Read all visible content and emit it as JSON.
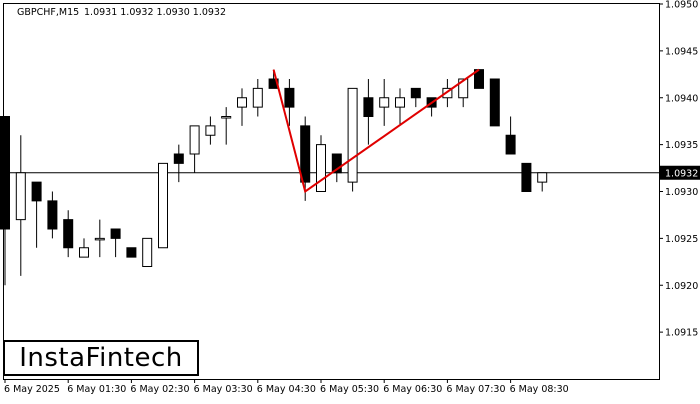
{
  "header": {
    "symbol_label": "GBPCHF,M15",
    "ohlc_label": "1.0931 1.0932 1.0930 1.0932"
  },
  "logo": {
    "text": "InstaFintech"
  },
  "current_price": {
    "label": "1.0932",
    "value": 1.0932
  },
  "colors": {
    "bull": "#ffffff",
    "bear": "#000000",
    "pattern_line": "#e00000",
    "price_line": "#000000"
  },
  "chart_data": {
    "type": "candlestick",
    "symbol": "GBPCHF",
    "timeframe": "M15",
    "ylim": [
      1.091,
      1.095
    ],
    "y_ticks": [
      "1.0915",
      "1.0920",
      "1.0925",
      "1.0930",
      "1.0935",
      "1.0940",
      "1.0945",
      "1.0950"
    ],
    "x_ticks": [
      "6 May 2025",
      "6 May 01:30",
      "6 May 02:30",
      "6 May 03:30",
      "6 May 04:30",
      "6 May 05:30",
      "6 May 06:30",
      "6 May 07:30",
      "6 May 08:30"
    ],
    "candles": [
      {
        "o": 1.0938,
        "h": 1.0938,
        "l": 1.092,
        "c": 1.0926
      },
      {
        "o": 1.0927,
        "h": 1.0936,
        "l": 1.0921,
        "c": 1.0932
      },
      {
        "o": 1.0931,
        "h": 1.0931,
        "l": 1.0924,
        "c": 1.0929
      },
      {
        "o": 1.0929,
        "h": 1.093,
        "l": 1.0925,
        "c": 1.0926
      },
      {
        "o": 1.0927,
        "h": 1.0928,
        "l": 1.0923,
        "c": 1.0924
      },
      {
        "o": 1.0923,
        "h": 1.0925,
        "l": 1.0923,
        "c": 1.0924
      },
      {
        "o": 1.0925,
        "h": 1.0927,
        "l": 1.0923,
        "c": 1.0925
      },
      {
        "o": 1.0926,
        "h": 1.0926,
        "l": 1.0923,
        "c": 1.0925
      },
      {
        "o": 1.0924,
        "h": 1.0924,
        "l": 1.0923,
        "c": 1.0923
      },
      {
        "o": 1.0922,
        "h": 1.0925,
        "l": 1.0922,
        "c": 1.0925
      },
      {
        "o": 1.0924,
        "h": 1.0933,
        "l": 1.0924,
        "c": 1.0933
      },
      {
        "o": 1.0934,
        "h": 1.0935,
        "l": 1.0931,
        "c": 1.0933
      },
      {
        "o": 1.0934,
        "h": 1.0937,
        "l": 1.0932,
        "c": 1.0937
      },
      {
        "o": 1.0936,
        "h": 1.0938,
        "l": 1.0935,
        "c": 1.0937
      },
      {
        "o": 1.0938,
        "h": 1.0939,
        "l": 1.0935,
        "c": 1.0938
      },
      {
        "o": 1.0939,
        "h": 1.0941,
        "l": 1.0937,
        "c": 1.094
      },
      {
        "o": 1.0939,
        "h": 1.0942,
        "l": 1.0938,
        "c": 1.0941
      },
      {
        "o": 1.0942,
        "h": 1.0943,
        "l": 1.0941,
        "c": 1.0941
      },
      {
        "o": 1.0941,
        "h": 1.0942,
        "l": 1.0937,
        "c": 1.0939
      },
      {
        "o": 1.0937,
        "h": 1.0938,
        "l": 1.0929,
        "c": 1.0931
      },
      {
        "o": 1.093,
        "h": 1.0936,
        "l": 1.093,
        "c": 1.0935
      },
      {
        "o": 1.0934,
        "h": 1.0934,
        "l": 1.0931,
        "c": 1.0932
      },
      {
        "o": 1.0931,
        "h": 1.0941,
        "l": 1.093,
        "c": 1.0941
      },
      {
        "o": 1.094,
        "h": 1.0942,
        "l": 1.0935,
        "c": 1.0938
      },
      {
        "o": 1.0939,
        "h": 1.0942,
        "l": 1.0937,
        "c": 1.094
      },
      {
        "o": 1.0939,
        "h": 1.0941,
        "l": 1.0937,
        "c": 1.094
      },
      {
        "o": 1.0941,
        "h": 1.0941,
        "l": 1.0939,
        "c": 1.094
      },
      {
        "o": 1.094,
        "h": 1.094,
        "l": 1.0938,
        "c": 1.0939
      },
      {
        "o": 1.094,
        "h": 1.0942,
        "l": 1.0939,
        "c": 1.0941
      },
      {
        "o": 1.094,
        "h": 1.0942,
        "l": 1.0939,
        "c": 1.0942
      },
      {
        "o": 1.0943,
        "h": 1.0943,
        "l": 1.0941,
        "c": 1.0941
      },
      {
        "o": 1.0942,
        "h": 1.0942,
        "l": 1.0937,
        "c": 1.0937
      },
      {
        "o": 1.0936,
        "h": 1.0938,
        "l": 1.0934,
        "c": 1.0934
      },
      {
        "o": 1.0933,
        "h": 1.0933,
        "l": 1.093,
        "c": 1.093
      },
      {
        "o": 1.0931,
        "h": 1.0932,
        "l": 1.093,
        "c": 1.0932
      }
    ],
    "pattern_line": [
      {
        "candle": 17,
        "price": 1.0943
      },
      {
        "candle": 19,
        "price": 1.093
      },
      {
        "candle": 30,
        "price": 1.0943
      }
    ]
  }
}
